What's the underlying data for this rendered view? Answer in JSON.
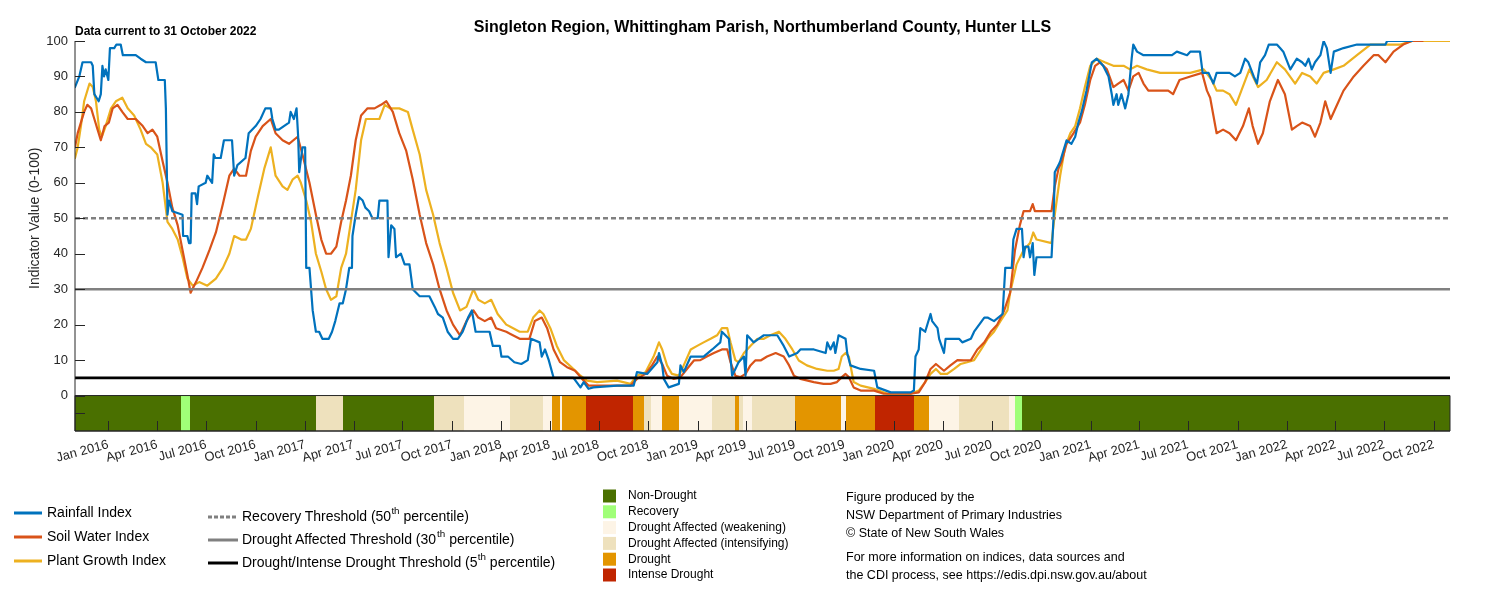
{
  "chart_data": {
    "type": "line",
    "title": "Singleton Region, Whittingham Parish, Northumberland County, Hunter LLS",
    "subtitle": "Data current to 31 October 2022",
    "ylabel": "Indicator Value (0-100)",
    "annotations": [
      "Figure produced by the\nNSW Department of Primary Industries\n© State of New South Wales",
      "For more information on indices, data sources and\nthe CDI process, see https://edis.dpi.nsw.gov.au/about"
    ],
    "legend": "bottom",
    "marker": "none",
    "xlim": [
      "2015-10-31",
      "2022-10-31"
    ],
    "xticks": [
      {
        "value": "2016-01-01",
        "label": "Jan 2016"
      },
      {
        "value": "2016-04-01",
        "label": "Apr 2016"
      },
      {
        "value": "2016-07-01",
        "label": "Jul 2016"
      },
      {
        "value": "2016-10-01",
        "label": "Oct 2016"
      },
      {
        "value": "2017-01-01",
        "label": "Jan 2017"
      },
      {
        "value": "2017-04-01",
        "label": "Apr 2017"
      },
      {
        "value": "2017-07-01",
        "label": "Jul 2017"
      },
      {
        "value": "2017-10-01",
        "label": "Oct 2017"
      },
      {
        "value": "2018-01-01",
        "label": "Jan 2018"
      },
      {
        "value": "2018-04-01",
        "label": "Apr 2018"
      },
      {
        "value": "2018-07-01",
        "label": "Jul 2018"
      },
      {
        "value": "2018-10-01",
        "label": "Oct 2018"
      },
      {
        "value": "2019-01-01",
        "label": "Jan 2019"
      },
      {
        "value": "2019-04-01",
        "label": "Apr 2019"
      },
      {
        "value": "2019-07-01",
        "label": "Jul 2019"
      },
      {
        "value": "2019-10-01",
        "label": "Oct 2019"
      },
      {
        "value": "2020-01-01",
        "label": "Jan 2020"
      },
      {
        "value": "2020-04-01",
        "label": "Apr 2020"
      },
      {
        "value": "2020-07-01",
        "label": "Jul 2020"
      },
      {
        "value": "2020-10-01",
        "label": "Oct 2020"
      },
      {
        "value": "2021-01-01",
        "label": "Jan 2021"
      },
      {
        "value": "2021-04-01",
        "label": "Apr 2021"
      },
      {
        "value": "2021-07-01",
        "label": "Jul 2021"
      },
      {
        "value": "2021-10-01",
        "label": "Oct 2021"
      },
      {
        "value": "2022-01-01",
        "label": "Jan 2022"
      },
      {
        "value": "2022-04-01",
        "label": "Apr 2022"
      },
      {
        "value": "2022-07-01",
        "label": "Jul 2022"
      },
      {
        "value": "2022-10-01",
        "label": "Oct 2022"
      }
    ],
    "ylim": [
      -10,
      100
    ],
    "yticks": [
      {
        "value": -5,
        "label": null
      },
      0,
      10,
      20,
      30,
      40,
      50,
      60,
      70,
      80,
      90,
      100
    ],
    "ref_lines": [
      {
        "axis": "y",
        "value": 50,
        "label": "Recovery Threshold (50$^{th}$ percentile)",
        "color": "#808080",
        "line_style": "dashed"
      },
      {
        "axis": "y",
        "value": 30,
        "label": "Drought Affected Threshold (30$^{th}$ percentile)",
        "color": "#808080",
        "line_style": "solid"
      },
      {
        "axis": "y",
        "value": 5,
        "label": "Drought/Intense Drought Threshold (5$^{th}$ percentile)",
        "color": "#000000",
        "line_style": "solid"
      }
    ],
    "bands": [
      {
        "axis": "x",
        "from": "2015-10-31",
        "to": "2016-05-15",
        "label": "Non-Drought",
        "color": "#4a7000"
      },
      {
        "axis": "x",
        "from": "2016-05-15",
        "to": "2016-06-01",
        "label": "Recovery",
        "color": "#a0ff78"
      },
      {
        "axis": "x",
        "from": "2017-10-23",
        "to": "2018-01-17",
        "label": "Drought Affected (weakening)",
        "color": "#fdf4e6"
      },
      {
        "axis": "x",
        "from": "2017-01-21",
        "to": "2017-03-13",
        "label": "Drought Affected (intensifying)",
        "color": "#eee1bd"
      },
      {
        "axis": "x",
        "from": "2018-04-05",
        "to": "2018-04-20",
        "label": "Drought",
        "color": "#e39500"
      },
      {
        "axis": "x",
        "from": "2018-06-08",
        "to": "2018-09-03",
        "label": "Intense Drought",
        "color": "#c02500"
      },
      {
        "axis": "x",
        "from": "2016-06-01",
        "to": "2017-01-21",
        "color": "#4a7000"
      },
      {
        "axis": "x",
        "from": "2017-03-13",
        "to": "2017-08-28",
        "color": "#4a7000"
      },
      {
        "axis": "x",
        "from": "2017-08-28",
        "to": "2017-10-23",
        "color": "#eee1bd"
      },
      {
        "axis": "x",
        "from": "2018-01-17",
        "to": "2018-03-20",
        "color": "#eee1bd"
      },
      {
        "axis": "x",
        "from": "2018-03-20",
        "to": "2018-04-05",
        "color": "#fdf4e6"
      },
      {
        "axis": "x",
        "from": "2018-04-20",
        "to": "2018-04-24",
        "color": "#fdf4e6"
      },
      {
        "axis": "x",
        "from": "2018-04-24",
        "to": "2018-06-08",
        "color": "#e39500"
      },
      {
        "axis": "x",
        "from": "2018-09-03",
        "to": "2018-09-24",
        "color": "#e39500"
      },
      {
        "axis": "x",
        "from": "2018-09-24",
        "to": "2018-10-06",
        "color": "#eee1bd"
      },
      {
        "axis": "x",
        "from": "2018-10-06",
        "to": "2018-10-27",
        "color": "#fdf4e6"
      },
      {
        "axis": "x",
        "from": "2018-10-27",
        "to": "2018-11-28",
        "color": "#e39500"
      },
      {
        "axis": "x",
        "from": "2018-11-28",
        "to": "2019-01-28",
        "color": "#fdf4e6"
      },
      {
        "axis": "x",
        "from": "2019-01-28",
        "to": "2019-03-12",
        "color": "#eee1bd"
      },
      {
        "axis": "x",
        "from": "2019-03-12",
        "to": "2019-03-19",
        "color": "#e39500"
      },
      {
        "axis": "x",
        "from": "2019-03-19",
        "to": "2019-03-27",
        "color": "#eee1bd"
      },
      {
        "axis": "x",
        "from": "2019-03-27",
        "to": "2019-04-12",
        "color": "#fdf4e6"
      },
      {
        "axis": "x",
        "from": "2019-04-12",
        "to": "2019-07-01",
        "color": "#eee1bd"
      },
      {
        "axis": "x",
        "from": "2019-07-01",
        "to": "2019-09-24",
        "color": "#e39500"
      },
      {
        "axis": "x",
        "from": "2019-09-24",
        "to": "2019-10-04",
        "color": "#fdf4e6"
      },
      {
        "axis": "x",
        "from": "2019-10-04",
        "to": "2019-11-26",
        "color": "#e39500"
      },
      {
        "axis": "x",
        "from": "2019-11-26",
        "to": "2020-02-07",
        "color": "#c02500"
      },
      {
        "axis": "x",
        "from": "2020-02-07",
        "to": "2020-03-06",
        "color": "#e39500"
      },
      {
        "axis": "x",
        "from": "2020-03-06",
        "to": "2020-05-01",
        "color": "#fdf4e6"
      },
      {
        "axis": "x",
        "from": "2020-05-01",
        "to": "2020-08-02",
        "color": "#eee1bd"
      },
      {
        "axis": "x",
        "from": "2020-08-02",
        "to": "2020-08-13",
        "color": "#fdf4e6"
      },
      {
        "axis": "x",
        "from": "2020-08-13",
        "to": "2020-08-26",
        "color": "#a0ff78"
      },
      {
        "axis": "x",
        "from": "2020-08-26",
        "to": "2022-10-31",
        "color": "#4a7000"
      }
    ],
    "series": [
      {
        "name": "Rainfall Index",
        "color": "#0072bd",
        "x": [
          "2015-10-31",
          "2015-11-08",
          "2015-11-14",
          "2015-11-30",
          "2015-12-03",
          "2015-12-06",
          "2015-12-14",
          "2015-12-18",
          "2015-12-21",
          "2015-12-24",
          "2015-12-27",
          "2016-01-01",
          "2016-01-04",
          "2016-01-12",
          "2016-01-16",
          "2016-01-24",
          "2016-01-28",
          "2016-02-02",
          "2016-02-21",
          "2016-03-01",
          "2016-03-11",
          "2016-03-20",
          "2016-03-29",
          "2016-04-03",
          "2016-04-15",
          "2016-04-17",
          "2016-04-20",
          "2016-04-23",
          "2016-04-29",
          "2016-05-18",
          "2016-05-19",
          "2016-05-27",
          "2016-05-30",
          "2016-06-02",
          "2016-06-04",
          "2016-06-11",
          "2016-06-14",
          "2016-06-17",
          "2016-06-30",
          "2016-07-03",
          "2016-07-12",
          "2016-07-15",
          "2016-07-18",
          "2016-07-28",
          "2016-08-03",
          "2016-08-18",
          "2016-08-22",
          "2016-08-28",
          "2016-09-12",
          "2016-09-18",
          "2016-10-01",
          "2016-10-10",
          "2016-10-19",
          "2016-10-29",
          "2016-11-01",
          "2016-11-07",
          "2016-11-13",
          "2016-12-02",
          "2016-12-05",
          "2016-12-11",
          "2016-12-16",
          "2016-12-19",
          "2016-12-21",
          "2016-12-27",
          "2017-01-01",
          "2017-01-03",
          "2017-01-09",
          "2017-01-15",
          "2017-01-21",
          "2017-01-27",
          "2017-02-02",
          "2017-02-14",
          "2017-02-20",
          "2017-02-26",
          "2017-03-06",
          "2017-03-12",
          "2017-03-18",
          "2017-03-24",
          "2017-03-29",
          "2017-03-30",
          "2017-04-05",
          "2017-04-11",
          "2017-04-18",
          "2017-04-23",
          "2017-04-30",
          "2017-05-06",
          "2017-05-16",
          "2017-05-19",
          "2017-06-03",
          "2017-06-05",
          "2017-06-10",
          "2017-06-16",
          "2017-06-19",
          "2017-06-28",
          "2017-07-05",
          "2017-07-14",
          "2017-07-20",
          "2017-08-02",
          "2017-08-20",
          "2017-08-30",
          "2017-09-05",
          "2017-09-14",
          "2017-09-23",
          "2017-10-03",
          "2017-10-12",
          "2017-10-21",
          "2017-10-31",
          "2017-11-07",
          "2017-11-14",
          "2017-12-10",
          "2017-12-16",
          "2017-12-29",
          "2018-01-01",
          "2018-01-13",
          "2018-01-25",
          "2018-02-07",
          "2018-02-19",
          "2018-02-25",
          "2018-03-13",
          "2018-03-17",
          "2018-03-23",
          "2018-03-30",
          "2018-04-08",
          "2018-05-15",
          "2018-05-28",
          "2018-06-03",
          "2018-06-12",
          "2018-06-21",
          "2018-08-04",
          "2018-09-04",
          "2018-09-10",
          "2018-09-29",
          "2018-10-18",
          "2018-10-21",
          "2018-10-27",
          "2018-10-30",
          "2018-11-08",
          "2018-11-27",
          "2018-11-30",
          "2018-12-06",
          "2018-12-19",
          "2019-01-12",
          "2019-01-28",
          "2019-02-12",
          "2019-02-15",
          "2019-02-28",
          "2019-03-06",
          "2019-03-18",
          "2019-03-28",
          "2019-03-31",
          "2019-04-03",
          "2019-04-15",
          "2019-05-04",
          "2019-05-16",
          "2019-05-29",
          "2019-06-10",
          "2019-06-20",
          "2019-07-05",
          "2019-07-11",
          "2019-08-05",
          "2019-08-27",
          "2019-08-30",
          "2019-09-05",
          "2019-09-11",
          "2019-09-14",
          "2019-09-20",
          "2019-10-03",
          "2019-10-06",
          "2019-10-12",
          "2019-10-31",
          "2019-11-25",
          "2019-12-01",
          "2019-12-26",
          "2020-02-01",
          "2020-02-07",
          "2020-02-10",
          "2020-02-16",
          "2020-02-19",
          "2020-02-28",
          "2020-03-09",
          "2020-03-12",
          "2020-03-22",
          "2020-03-25",
          "2020-04-03",
          "2020-04-06",
          "2020-05-01",
          "2020-05-07",
          "2020-05-23",
          "2020-05-29",
          "2020-06-17",
          "2020-06-23",
          "2020-07-05",
          "2020-07-21",
          "2020-07-26",
          "2020-08-07",
          "2020-08-10",
          "2020-08-16",
          "2020-08-26",
          "2020-08-29",
          "2020-09-01",
          "2020-09-07",
          "2020-09-10",
          "2020-09-15",
          "2020-09-18",
          "2020-09-22",
          "2020-10-11",
          "2020-10-20",
          "2020-10-24",
          "2020-10-26",
          "2020-11-02",
          "2020-11-05",
          "2020-11-17",
          "2020-11-26",
          "2020-12-03",
          "2020-12-09",
          "2020-12-15",
          "2020-12-24",
          "2021-01-03",
          "2021-01-12",
          "2021-01-24",
          "2021-02-03",
          "2021-02-09",
          "2021-02-12",
          "2021-02-18",
          "2021-02-21",
          "2021-02-27",
          "2021-03-06",
          "2021-03-12",
          "2021-03-18",
          "2021-03-21",
          "2021-03-28",
          "2021-04-09",
          "2021-04-21",
          "2021-05-04",
          "2021-06-01",
          "2021-06-10",
          "2021-06-29",
          "2021-07-05",
          "2021-07-23",
          "2021-07-28",
          "2021-08-08",
          "2021-08-17",
          "2021-08-23",
          "2021-09-04",
          "2021-09-16",
          "2021-09-26",
          "2021-10-06",
          "2021-10-15",
          "2021-10-21",
          "2021-10-31",
          "2021-11-06",
          "2021-11-12",
          "2021-11-21",
          "2021-11-28",
          "2021-12-13",
          "2021-12-19",
          "2021-12-25",
          "2022-01-07",
          "2022-01-19",
          "2022-01-29",
          "2022-02-04",
          "2022-02-10",
          "2022-02-16",
          "2022-02-22",
          "2022-03-04",
          "2022-03-10",
          "2022-03-16",
          "2022-03-23",
          "2022-03-29",
          "2022-04-16",
          "2022-05-11",
          "2022-06-05",
          "2022-06-11",
          "2022-07-03",
          "2022-07-06",
          "2022-08-21"
        ],
        "values": [
          87,
          90,
          94,
          94,
          93,
          85,
          83,
          85,
          93,
          90,
          92,
          89,
          98,
          98,
          99,
          99,
          96,
          96,
          96,
          95,
          94,
          94,
          94,
          89,
          89,
          81,
          51,
          55,
          52,
          51,
          45,
          45,
          43,
          43,
          57,
          57,
          54,
          59,
          60,
          62,
          60,
          68,
          67,
          67,
          72,
          72,
          62,
          65,
          67,
          74,
          76,
          78,
          81,
          81,
          78,
          75,
          75,
          77,
          80,
          78,
          81,
          73,
          63,
          70,
          70,
          36,
          36,
          24,
          18,
          18,
          16,
          16,
          18,
          21,
          26,
          26,
          30,
          36,
          36,
          45,
          51,
          56,
          55,
          53,
          52,
          50,
          50,
          55,
          55,
          39,
          48,
          47,
          39,
          40,
          37,
          37,
          30,
          28,
          28,
          25,
          23,
          22,
          18,
          16,
          16,
          18,
          22,
          24,
          18,
          18,
          14,
          14,
          11,
          11,
          9.4,
          8.9,
          10,
          16,
          15,
          11,
          13,
          10,
          5,
          5,
          2.3,
          3.8,
          1.9,
          2.3,
          2.8,
          2.8,
          6.6,
          6.1,
          9.4,
          12,
          8.5,
          4.7,
          2.3,
          3.3,
          8.5,
          6.6,
          11,
          11,
          13,
          15,
          18,
          16,
          5.6,
          9.4,
          11,
          5.6,
          17,
          15,
          17,
          17,
          17,
          14,
          11,
          12,
          13,
          13,
          12,
          15,
          13,
          15,
          12,
          17,
          16,
          12,
          8.5,
          7.5,
          7,
          2.3,
          0.9,
          0.9,
          1.4,
          11,
          13,
          19,
          18,
          23,
          21,
          19,
          16,
          12,
          16,
          16,
          15,
          16,
          18,
          22,
          22,
          21,
          23,
          36,
          36,
          44,
          47,
          47,
          39,
          42,
          42,
          39,
          43,
          34,
          39,
          39,
          39,
          51,
          63,
          65,
          66,
          72,
          71,
          73,
          77,
          80,
          86,
          94,
          95,
          93,
          90,
          85,
          82,
          85,
          82,
          85,
          81,
          85,
          95,
          99,
          97,
          96,
          96,
          96,
          96,
          97,
          96,
          97,
          97,
          91,
          91,
          88,
          91,
          91,
          91,
          90,
          91,
          95,
          94,
          90,
          88,
          94,
          96,
          99,
          99,
          98,
          97,
          92,
          95,
          94,
          93,
          95,
          92,
          94,
          96,
          100,
          98,
          91,
          97,
          98,
          99,
          99,
          99,
          99,
          100,
          100
        ]
      },
      {
        "name": "Soil Water Index",
        "color": "#d95319",
        "x": [
          "2015-10-31",
          "2015-11-05",
          "2015-11-17",
          "2015-11-23",
          "2015-11-30",
          "2015-12-06",
          "2015-12-12",
          "2015-12-18",
          "2015-12-25",
          "2016-01-02",
          "2016-01-09",
          "2016-01-18",
          "2016-01-27",
          "2016-02-06",
          "2016-02-21",
          "2016-03-05",
          "2016-03-14",
          "2016-03-23",
          "2016-04-01",
          "2016-04-11",
          "2016-04-20",
          "2016-04-29",
          "2016-05-09",
          "2016-05-18",
          "2016-05-27",
          "2016-06-02",
          "2016-06-12",
          "2016-06-24",
          "2016-07-07",
          "2016-07-19",
          "2016-08-01",
          "2016-08-13",
          "2016-08-22",
          "2016-09-01",
          "2016-09-13",
          "2016-09-22",
          "2016-10-01",
          "2016-10-14",
          "2016-10-29",
          "2016-11-07",
          "2016-11-20",
          "2016-12-02",
          "2016-12-18",
          "2016-12-27",
          "2017-01-09",
          "2017-01-21",
          "2017-01-31",
          "2017-02-09",
          "2017-02-18",
          "2017-02-28",
          "2017-03-09",
          "2017-03-18",
          "2017-03-27",
          "2017-04-05",
          "2017-04-15",
          "2017-04-27",
          "2017-05-10",
          "2017-05-22",
          "2017-06-01",
          "2017-06-13",
          "2017-06-25",
          "2017-07-08",
          "2017-07-20",
          "2017-08-02",
          "2017-08-14",
          "2017-08-27",
          "2017-09-08",
          "2017-09-21",
          "2017-10-03",
          "2017-10-16",
          "2017-10-28",
          "2017-11-10",
          "2017-11-19",
          "2017-12-01",
          "2017-12-13",
          "2017-12-22",
          "2018-01-10",
          "2018-02-04",
          "2018-02-22",
          "2018-03-04",
          "2018-03-17",
          "2018-03-27",
          "2018-04-08",
          "2018-04-20",
          "2018-05-03",
          "2018-05-18",
          "2018-05-31",
          "2018-06-12",
          "2018-08-29",
          "2018-09-10",
          "2018-09-26",
          "2018-10-08",
          "2018-10-18",
          "2018-10-27",
          "2018-11-05",
          "2018-11-17",
          "2018-11-30",
          "2018-12-12",
          "2018-12-25",
          "2019-01-06",
          "2019-01-18",
          "2019-01-31",
          "2019-02-15",
          "2019-02-25",
          "2019-03-03",
          "2019-03-12",
          "2019-03-21",
          "2019-03-31",
          "2019-04-09",
          "2019-04-18",
          "2019-04-28",
          "2019-05-10",
          "2019-05-26",
          "2019-06-10",
          "2019-06-20",
          "2019-06-29",
          "2019-07-11",
          "2019-08-05",
          "2019-08-23",
          "2019-09-05",
          "2019-09-17",
          "2019-09-26",
          "2019-10-03",
          "2019-10-09",
          "2019-10-18",
          "2019-10-31",
          "2019-11-25",
          "2019-12-13",
          "2020-02-01",
          "2020-02-16",
          "2020-02-28",
          "2020-03-09",
          "2020-03-19",
          "2020-04-03",
          "2020-04-15",
          "2020-04-28",
          "2020-05-10",
          "2020-05-23",
          "2020-06-04",
          "2020-06-17",
          "2020-06-29",
          "2020-07-11",
          "2020-07-24",
          "2020-08-04",
          "2020-08-13",
          "2020-08-22",
          "2020-08-29",
          "2020-09-10",
          "2020-09-15",
          "2020-09-19",
          "2020-10-20",
          "2020-10-26",
          "2020-11-02",
          "2020-11-08",
          "2020-11-17",
          "2020-11-30",
          "2020-12-12",
          "2020-12-21",
          "2020-12-31",
          "2021-01-09",
          "2021-01-18",
          "2021-01-31",
          "2021-02-12",
          "2021-02-21",
          "2021-03-03",
          "2021-03-12",
          "2021-03-21",
          "2021-03-31",
          "2021-04-09",
          "2021-04-18",
          "2021-04-30",
          "2021-05-16",
          "2021-05-25",
          "2021-06-03",
          "2021-06-15",
          "2021-07-05",
          "2021-07-27",
          "2021-08-05",
          "2021-08-11",
          "2021-08-17",
          "2021-08-23",
          "2021-09-04",
          "2021-09-16",
          "2021-09-28",
          "2021-10-11",
          "2021-10-22",
          "2021-10-29",
          "2021-11-08",
          "2021-11-17",
          "2021-11-30",
          "2021-12-15",
          "2021-12-28",
          "2022-01-10",
          "2022-01-19",
          "2022-01-29",
          "2022-02-13",
          "2022-02-22",
          "2022-03-04",
          "2022-03-13",
          "2022-03-23",
          "2022-04-04",
          "2022-04-16",
          "2022-05-05",
          "2022-05-23",
          "2022-06-11",
          "2022-06-20",
          "2022-07-03",
          "2022-07-18",
          "2022-08-05",
          "2022-08-21",
          "2022-09-10"
        ],
        "values": [
          70,
          74,
          80,
          82,
          81,
          78,
          75,
          72,
          76,
          77,
          81,
          82,
          80,
          78,
          78,
          76,
          74,
          75,
          73,
          66,
          60,
          53,
          48,
          41,
          34,
          29,
          32,
          36,
          41,
          46,
          54,
          62,
          64,
          62,
          62,
          69,
          73,
          76,
          78,
          74,
          72,
          71,
          73,
          68,
          60,
          51,
          44,
          40,
          40,
          42,
          49,
          55,
          62,
          72,
          79,
          81,
          81,
          82,
          83,
          80,
          74,
          69,
          61,
          51,
          43,
          37,
          30,
          24,
          20,
          17,
          21,
          24,
          22,
          21,
          22,
          19,
          18,
          16,
          16,
          21,
          22,
          19,
          13,
          9.4,
          8,
          7,
          4.7,
          2.8,
          2.8,
          4.7,
          6.1,
          8.5,
          11,
          8.9,
          5.6,
          4.7,
          5.2,
          7.5,
          9.9,
          10,
          11,
          12,
          13,
          13,
          9.4,
          5.6,
          5.2,
          6.1,
          8.5,
          9.9,
          9.9,
          11,
          12,
          11,
          8.5,
          5.6,
          4.7,
          3.8,
          3.3,
          3.3,
          3.8,
          5.2,
          6.1,
          5.2,
          2.3,
          1.4,
          1.4,
          0.5,
          0.5,
          0.9,
          3.8,
          7.5,
          8.9,
          7,
          8.5,
          10,
          9.9,
          10,
          13,
          15,
          18,
          20,
          24,
          29,
          41,
          48,
          52,
          52,
          54,
          52,
          52,
          59,
          64,
          66,
          71,
          74,
          77,
          82,
          89,
          93,
          94,
          92,
          87,
          88,
          89,
          86,
          90,
          91,
          88,
          86,
          86,
          86,
          86,
          85,
          89,
          90,
          91,
          86,
          84,
          79,
          74,
          75,
          74,
          72,
          76,
          81,
          76,
          71,
          74,
          83,
          89,
          85,
          75,
          76,
          77,
          76,
          73,
          77,
          83,
          78,
          82,
          86,
          90,
          93,
          96,
          96,
          94,
          97,
          99,
          100,
          100
        ]
      },
      {
        "name": "Plant Growth Index",
        "color": "#edb120",
        "x": [
          "2015-10-31",
          "2015-11-05",
          "2015-11-11",
          "2015-11-17",
          "2015-11-27",
          "2015-12-03",
          "2015-12-09",
          "2015-12-15",
          "2015-12-20",
          "2015-12-27",
          "2016-01-06",
          "2016-01-15",
          "2016-01-27",
          "2016-02-06",
          "2016-02-18",
          "2016-03-01",
          "2016-03-11",
          "2016-03-20",
          "2016-04-01",
          "2016-04-11",
          "2016-04-20",
          "2016-04-29",
          "2016-05-09",
          "2016-05-18",
          "2016-05-27",
          "2016-06-06",
          "2016-06-18",
          "2016-07-03",
          "2016-07-19",
          "2016-08-01",
          "2016-08-13",
          "2016-08-22",
          "2016-09-04",
          "2016-09-13",
          "2016-09-22",
          "2016-10-05",
          "2016-10-17",
          "2016-10-29",
          "2016-11-07",
          "2016-11-20",
          "2016-11-29",
          "2016-12-09",
          "2016-12-18",
          "2016-12-24",
          "2017-01-03",
          "2017-01-12",
          "2017-01-21",
          "2017-01-31",
          "2017-02-09",
          "2017-02-18",
          "2017-02-28",
          "2017-03-09",
          "2017-03-18",
          "2017-03-27",
          "2017-04-05",
          "2017-04-15",
          "2017-04-24",
          "2017-05-10",
          "2017-05-19",
          "2017-05-29",
          "2017-06-08",
          "2017-06-25",
          "2017-07-11",
          "2017-07-20",
          "2017-08-02",
          "2017-08-14",
          "2017-08-27",
          "2017-09-08",
          "2017-09-21",
          "2017-10-03",
          "2017-10-16",
          "2017-10-28",
          "2017-11-10",
          "2017-11-19",
          "2017-12-01",
          "2017-12-13",
          "2017-12-25",
          "2018-01-10",
          "2018-02-04",
          "2018-02-19",
          "2018-03-01",
          "2018-03-13",
          "2018-03-20",
          "2018-04-02",
          "2018-04-14",
          "2018-04-27",
          "2018-05-15",
          "2018-05-28",
          "2018-06-09",
          "2018-06-28",
          "2018-08-04",
          "2018-08-29",
          "2018-09-10",
          "2018-09-26",
          "2018-10-11",
          "2018-10-21",
          "2018-10-27",
          "2018-11-05",
          "2018-11-14",
          "2018-11-27",
          "2018-12-06",
          "2018-12-19",
          "2018-12-31",
          "2019-01-12",
          "2019-01-25",
          "2019-02-06",
          "2019-02-15",
          "2019-02-25",
          "2019-03-03",
          "2019-03-12",
          "2019-03-18",
          "2019-03-28",
          "2019-04-09",
          "2019-04-22",
          "2019-05-04",
          "2019-05-16",
          "2019-06-01",
          "2019-06-13",
          "2019-06-26",
          "2019-07-08",
          "2019-07-23",
          "2019-08-11",
          "2019-08-30",
          "2019-09-11",
          "2019-09-20",
          "2019-09-26",
          "2019-10-03",
          "2019-10-09",
          "2019-10-18",
          "2019-10-31",
          "2019-11-25",
          "2019-12-20",
          "2020-02-01",
          "2020-02-16",
          "2020-02-28",
          "2020-03-09",
          "2020-03-19",
          "2020-03-28",
          "2020-04-09",
          "2020-04-22",
          "2020-05-04",
          "2020-05-16",
          "2020-05-29",
          "2020-06-11",
          "2020-06-23",
          "2020-07-05",
          "2020-07-17",
          "2020-07-30",
          "2020-08-04",
          "2020-08-16",
          "2020-08-29",
          "2020-09-10",
          "2020-09-16",
          "2020-09-22",
          "2020-10-20",
          "2020-10-26",
          "2020-11-05",
          "2020-11-14",
          "2020-11-24",
          "2020-12-03",
          "2020-12-12",
          "2020-12-21",
          "2020-12-31",
          "2021-01-12",
          "2021-01-27",
          "2021-02-12",
          "2021-03-03",
          "2021-03-15",
          "2021-03-28",
          "2021-04-15",
          "2021-05-10",
          "2021-06-03",
          "2021-07-05",
          "2021-07-30",
          "2021-08-14",
          "2021-08-23",
          "2021-09-04",
          "2021-09-16",
          "2021-09-28",
          "2021-10-08",
          "2021-10-23",
          "2021-11-08",
          "2021-11-24",
          "2021-12-13",
          "2021-12-28",
          "2022-01-16",
          "2022-01-29",
          "2022-02-13",
          "2022-02-25",
          "2022-03-10",
          "2022-03-29",
          "2022-04-16",
          "2022-05-11",
          "2022-06-05",
          "2022-07-03",
          "2022-07-31",
          "2022-08-21",
          "2022-10-31"
        ],
        "values": [
          67,
          70,
          76,
          83,
          88,
          87,
          83,
          75,
          73,
          76,
          81,
          83,
          84,
          81,
          79,
          75,
          71,
          70,
          68,
          60,
          49,
          47,
          44,
          39,
          33,
          31,
          32,
          31,
          33,
          36,
          40,
          45,
          44,
          44,
          47,
          56,
          64,
          70,
          62,
          59,
          58,
          61,
          62,
          60,
          55,
          49,
          40,
          35,
          30,
          27,
          28,
          36,
          40,
          49,
          58,
          72,
          78,
          78,
          78,
          82,
          81,
          81,
          80,
          75,
          68,
          58,
          51,
          43,
          36,
          29,
          24,
          25,
          30,
          27,
          26,
          27,
          23,
          20,
          18,
          18,
          22,
          24,
          23,
          19,
          14,
          10,
          7.5,
          5.6,
          4.2,
          3.8,
          4.2,
          3.3,
          5.6,
          6.6,
          11,
          15,
          13,
          8.5,
          6.1,
          5.6,
          8.5,
          13,
          14,
          15,
          16,
          17,
          19,
          19,
          15,
          10,
          9.4,
          12,
          14,
          16,
          16,
          17,
          18,
          16,
          13,
          9.9,
          8.5,
          7.5,
          7,
          7,
          7.5,
          11,
          12,
          11,
          3.8,
          2.8,
          1.9,
          0.5,
          0.5,
          1.4,
          3.8,
          6.1,
          7.5,
          6.1,
          6.1,
          7.5,
          8.9,
          9.4,
          10,
          13,
          16,
          18,
          21,
          24,
          29,
          37,
          41,
          43,
          46,
          44,
          43,
          51,
          62,
          70,
          74,
          76,
          81,
          87,
          93,
          95,
          94,
          93,
          93,
          92,
          93,
          92,
          91,
          91,
          91,
          92,
          89,
          86,
          86,
          85,
          82,
          86,
          92,
          87,
          89,
          94,
          92,
          88,
          91,
          90,
          88,
          91,
          92,
          93,
          96,
          99,
          99,
          99,
          100,
          100
        ]
      }
    ]
  }
}
